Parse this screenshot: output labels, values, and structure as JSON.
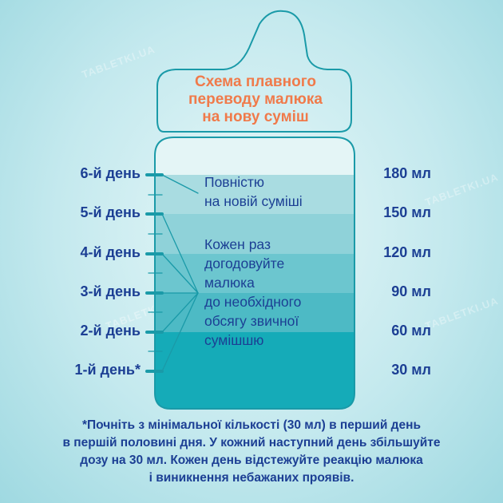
{
  "title_lines": [
    "Схема плавного",
    "переводу малюка",
    "на нову суміш"
  ],
  "watermark": "TABLETKI.UA",
  "days": [
    "6-й день",
    "5-й день",
    "4-й день",
    "3-й день",
    "2-й день",
    "1-й день*"
  ],
  "volumes": [
    "180 мл",
    "150 мл",
    "120 мл",
    "90 мл",
    "60 мл",
    "30 мл"
  ],
  "label_full": [
    "Повністю",
    "на новій суміші"
  ],
  "label_each": [
    "Кожен раз",
    "догодовуйте",
    "малюка",
    "до необхідного",
    "обсягу звичної",
    "сумішшю"
  ],
  "footnote": [
    "*Почніть з мінімальної кількості (30 мл) в перший день",
    "в першій половині дня. У кожний наступний день збільшуйте",
    "дозу на 30 мл. Кожен день відстежуйте реакцію малюка",
    "і виникнення небажаних проявів."
  ],
  "colors": {
    "title": "#f07a4a",
    "text": "#1c3f94",
    "outline": "#1a9aa8",
    "band_light": "#a6dbe0",
    "band_dark": "#12aab7"
  }
}
